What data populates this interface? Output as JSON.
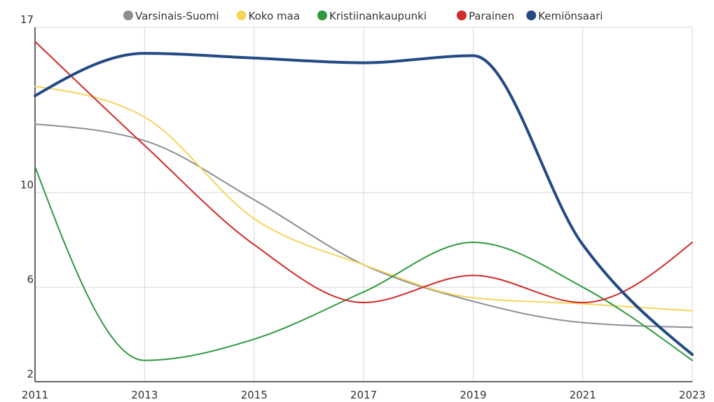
{
  "chart_data": {
    "type": "line",
    "x": [
      2011,
      2013,
      2015,
      2017,
      2019,
      2021,
      2023
    ],
    "series": [
      {
        "name": "Varsinais-Suomi",
        "color": "#8a8d96",
        "values": [
          12.9,
          12.2,
          9.7,
          6.95,
          5.4,
          4.5,
          4.3
        ]
      },
      {
        "name": "Koko maa",
        "color": "#f5d55a",
        "values": [
          14.5,
          13.2,
          8.9,
          6.95,
          5.55,
          5.3,
          5.0
        ]
      },
      {
        "name": "Kristiinankaupunki",
        "color": "#2e9a3e",
        "values": [
          11.1,
          2.9,
          3.8,
          5.8,
          7.9,
          6.0,
          2.9
        ]
      },
      {
        "name": "Parainen",
        "color": "#d02a2a",
        "values": [
          16.4,
          12.0,
          7.8,
          5.35,
          6.5,
          5.35,
          7.9
        ]
      },
      {
        "name": "Kemiönsaari",
        "color": "#234a84",
        "values": [
          14.1,
          15.9,
          15.7,
          15.5,
          15.8,
          7.8,
          3.15
        ]
      }
    ],
    "xlim": [
      2011,
      2023
    ],
    "xticks": [
      2011,
      2013,
      2015,
      2017,
      2019,
      2021,
      2023
    ],
    "ylim": [
      2,
      17
    ],
    "yticks": [
      2,
      6,
      10,
      17
    ],
    "grid": true,
    "legend": "top"
  }
}
